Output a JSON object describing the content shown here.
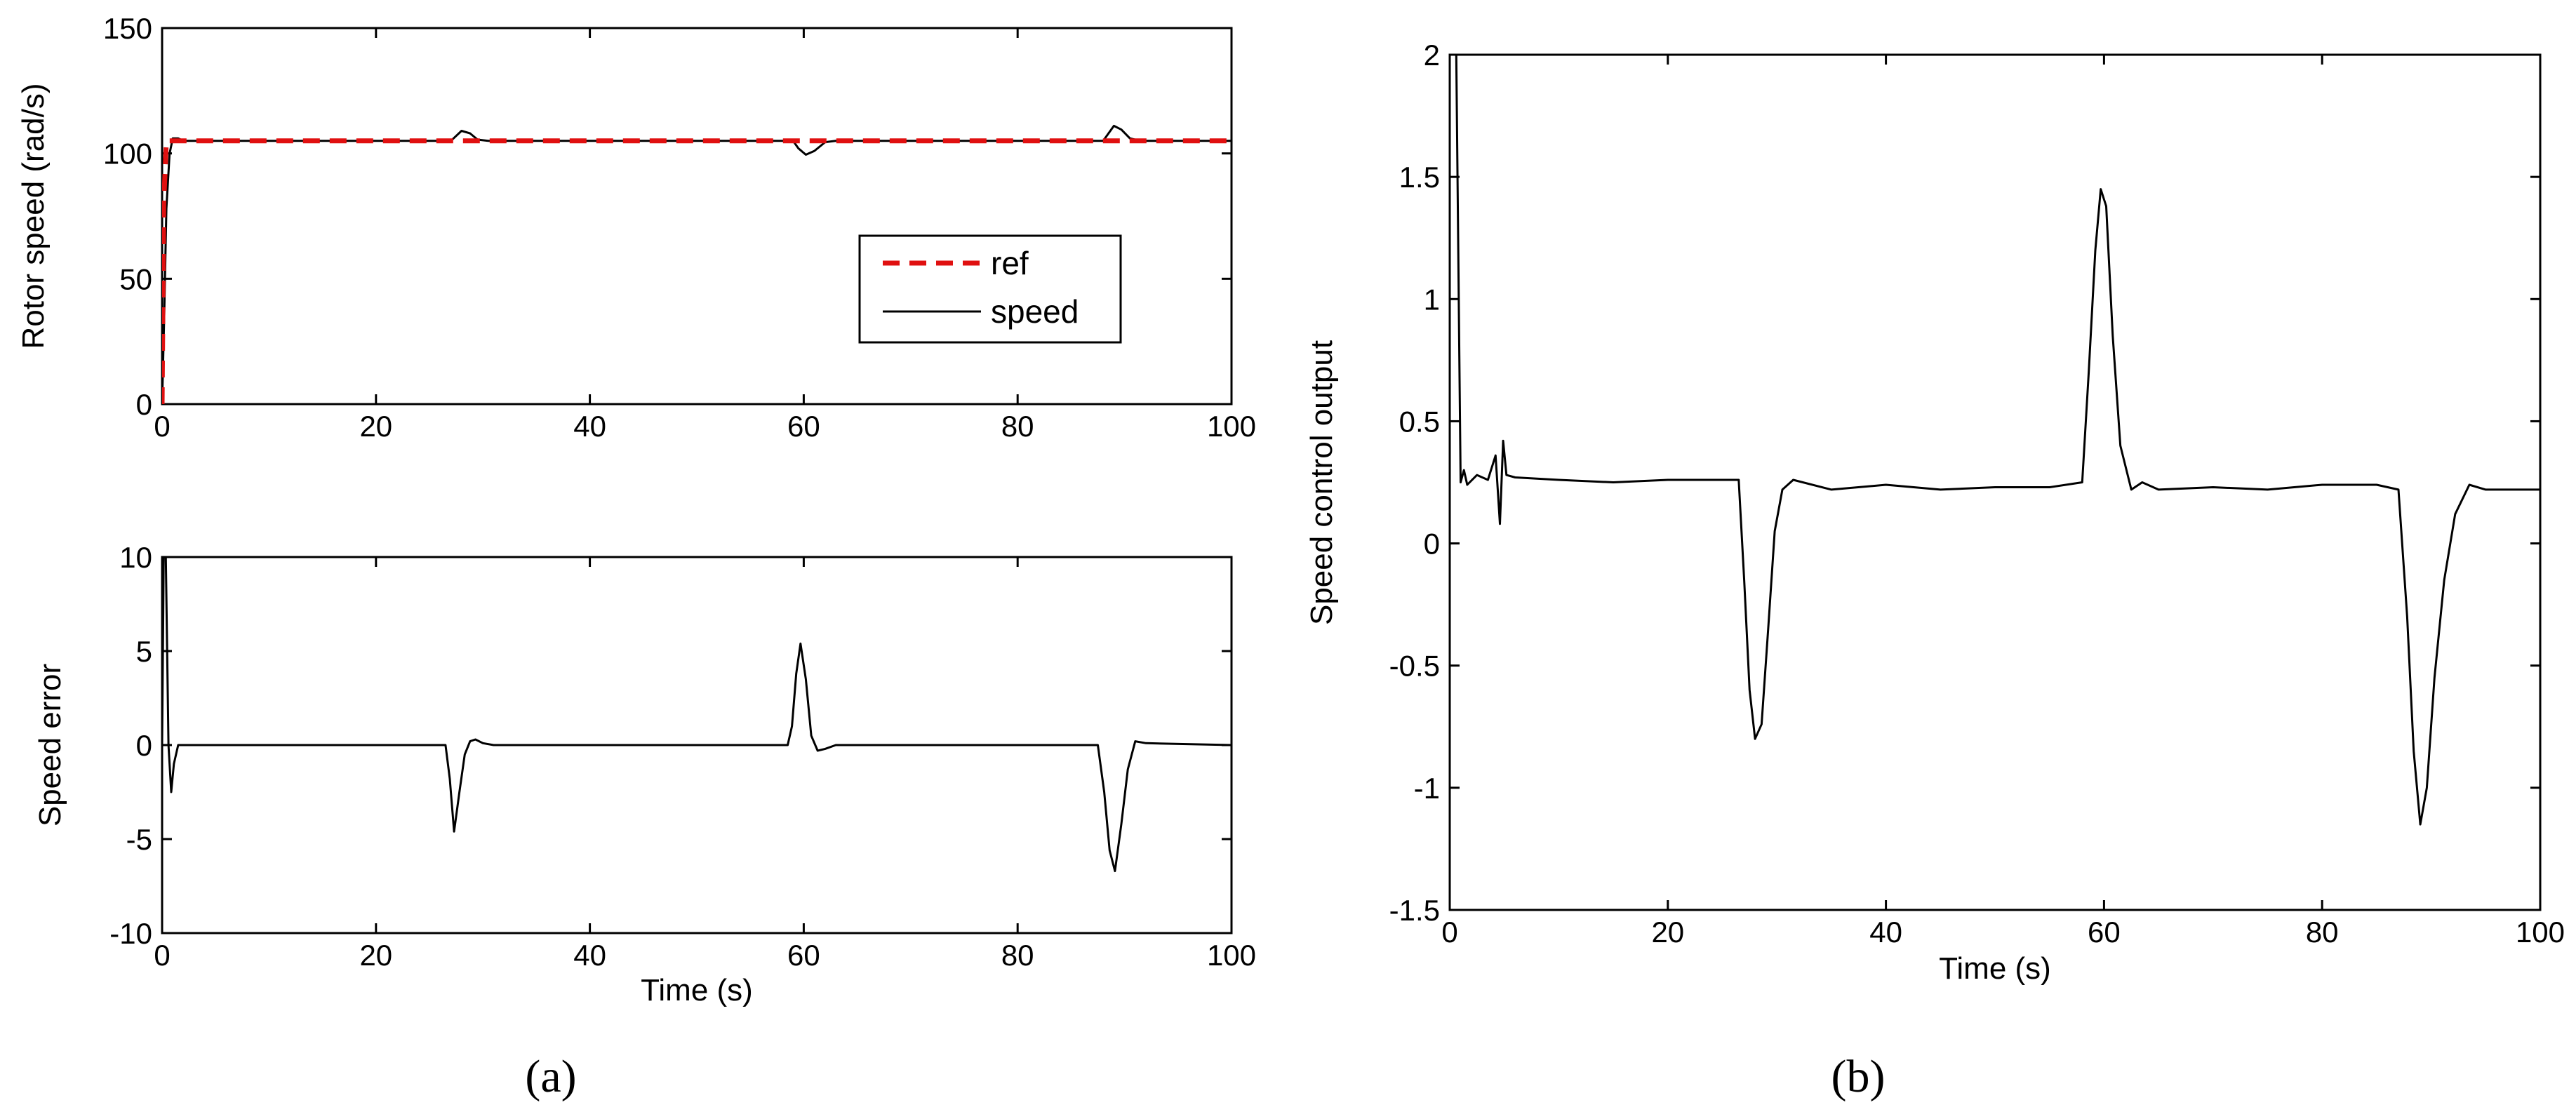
{
  "chart_data": [
    {
      "panel": "a-top",
      "type": "line",
      "xlabel": "",
      "ylabel": "Rotor speed (rad/s)",
      "xlim": [
        0,
        100
      ],
      "ylim": [
        0,
        150
      ],
      "xticks": [
        0,
        20,
        40,
        60,
        80,
        100
      ],
      "yticks": [
        0,
        50,
        100,
        150
      ],
      "legend": {
        "position": "center-right",
        "entries": [
          "ref",
          "speed"
        ]
      },
      "series": [
        {
          "name": "ref",
          "color": "#e01010",
          "style": "dashed",
          "x": [
            0,
            0.15,
            0.4,
            0.8,
            100
          ],
          "y": [
            0,
            80,
            105,
            105,
            105
          ]
        },
        {
          "name": "speed",
          "color": "#000000",
          "style": "solid",
          "x": [
            0,
            0.2,
            0.4,
            0.7,
            1.0,
            1.5,
            2,
            27,
            27.5,
            28,
            28.8,
            29.5,
            30.5,
            59,
            59.5,
            60.2,
            61,
            62,
            63,
            88,
            88.5,
            89,
            89.7,
            90.5,
            91.5,
            100
          ],
          "y": [
            0,
            35,
            78,
            100,
            106,
            106,
            105,
            105,
            107,
            109,
            108,
            105.5,
            105,
            105,
            102,
            99.5,
            101,
            104.5,
            105,
            105,
            108,
            111,
            109.5,
            106,
            105,
            105
          ]
        }
      ]
    },
    {
      "panel": "a-bottom",
      "type": "line",
      "xlabel": "Time (s)",
      "ylabel": "Speed error",
      "xlim": [
        0,
        100
      ],
      "ylim": [
        -10,
        10
      ],
      "xticks": [
        0,
        20,
        40,
        60,
        80,
        100
      ],
      "yticks": [
        -10,
        -5,
        0,
        5,
        10
      ],
      "series": [
        {
          "color": "#000000",
          "x": [
            0,
            0.15,
            0.35,
            0.6,
            0.85,
            1.1,
            1.5,
            2,
            26.5,
            26.9,
            27.3,
            27.8,
            28.3,
            28.8,
            29.3,
            30,
            31,
            58.5,
            58.9,
            59.3,
            59.7,
            60.2,
            60.7,
            61.3,
            62,
            63,
            87.5,
            88.1,
            88.6,
            89.1,
            89.7,
            90.3,
            91,
            92,
            100
          ],
          "y": [
            0,
            10,
            10,
            0,
            -2.5,
            -1,
            0,
            0,
            0,
            -1.8,
            -4.6,
            -2.5,
            -0.5,
            0.2,
            0.3,
            0.1,
            0,
            0,
            1,
            3.8,
            5.4,
            3.5,
            0.5,
            -0.3,
            -0.2,
            0,
            0,
            -2.5,
            -5.6,
            -6.7,
            -4.2,
            -1.3,
            0.2,
            0.1,
            0
          ]
        }
      ]
    },
    {
      "panel": "b",
      "type": "line",
      "xlabel": "Time (s)",
      "ylabel": "Speed control output",
      "xlim": [
        0,
        100
      ],
      "ylim": [
        -1.5,
        2
      ],
      "xticks": [
        0,
        20,
        40,
        60,
        80,
        100
      ],
      "yticks": [
        -1.5,
        -1,
        -0.5,
        0,
        0.5,
        1,
        1.5,
        2
      ],
      "series": [
        {
          "color": "#000000",
          "x": [
            0,
            0.6,
            1.0,
            1.3,
            1.6,
            2.5,
            3.5,
            4.2,
            4.6,
            4.9,
            5.2,
            6,
            10,
            15,
            20,
            25,
            26.5,
            27,
            27.5,
            28,
            28.6,
            29.2,
            29.8,
            30.5,
            31.5,
            35,
            40,
            45,
            50,
            55,
            58,
            58.6,
            59.2,
            59.7,
            60.2,
            60.8,
            61.5,
            62.5,
            63.5,
            65,
            70,
            75,
            80,
            85,
            87,
            87.8,
            88.4,
            89,
            89.6,
            90.3,
            91.2,
            92.2,
            93.5,
            95,
            100
          ],
          "y": [
            2,
            2,
            0.25,
            0.3,
            0.24,
            0.28,
            0.26,
            0.36,
            0.08,
            0.42,
            0.28,
            0.27,
            0.26,
            0.25,
            0.26,
            0.26,
            0.26,
            -0.15,
            -0.6,
            -0.8,
            -0.74,
            -0.35,
            0.05,
            0.22,
            0.26,
            0.22,
            0.24,
            0.22,
            0.23,
            0.23,
            0.25,
            0.7,
            1.2,
            1.45,
            1.38,
            0.85,
            0.4,
            0.22,
            0.25,
            0.22,
            0.23,
            0.22,
            0.24,
            0.24,
            0.22,
            -0.3,
            -0.85,
            -1.15,
            -1.0,
            -0.55,
            -0.15,
            0.12,
            0.24,
            0.22,
            0.22
          ]
        }
      ]
    }
  ],
  "captions": [
    "(a)",
    "(b)"
  ]
}
